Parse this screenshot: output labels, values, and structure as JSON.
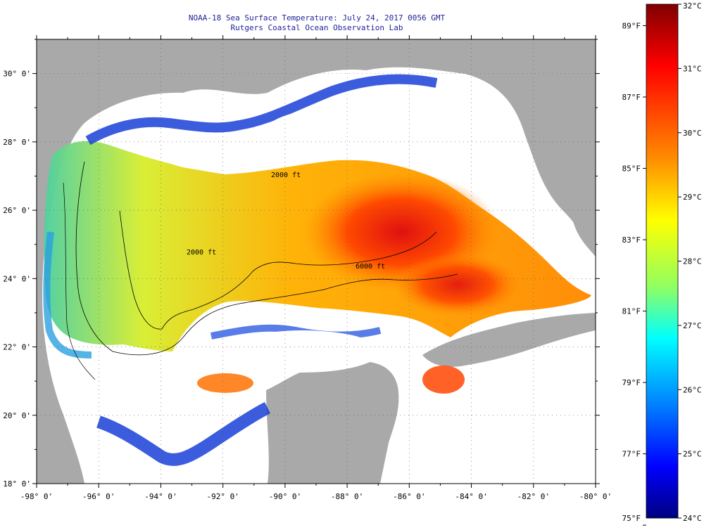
{
  "title": {
    "line1": "NOAA-18 Sea Surface Temperature:  July 24, 2017 0056 GMT",
    "line2": "Rutgers Coastal Ocean Observation Lab"
  },
  "map": {
    "lon_range": [
      -98,
      -80
    ],
    "lat_range": [
      18,
      31
    ],
    "lon_ticks": [
      "-98° 0'",
      "-96° 0'",
      "-94° 0'",
      "-92° 0'",
      "-90° 0'",
      "-88° 0'",
      "-86° 0'",
      "-84° 0'",
      "-82° 0'",
      "-80° 0'"
    ],
    "lat_ticks": [
      "18° 0'",
      "20° 0'",
      "22° 0'",
      "24° 0'",
      "26° 0'",
      "28° 0'",
      "30° 0'"
    ],
    "depth_labels": [
      "2000 ft",
      "6000 ft",
      "2000 ft"
    ],
    "colors": {
      "land": "#a9a9a9",
      "cloud": "#ffffff",
      "contour": "#000000"
    }
  },
  "colorbar": {
    "celsius_labels": [
      "32°C",
      "31°C",
      "30°C",
      "29°C",
      "28°C",
      "27°C",
      "26°C",
      "25°C",
      "24°C"
    ],
    "fahrenheit_labels": [
      "89°F",
      "87°F",
      "85°F",
      "83°F",
      "81°F",
      "79°F",
      "77°F",
      "75°F"
    ],
    "range_c": [
      24,
      32
    ],
    "colors": [
      "#00007f",
      "#0000ff",
      "#007fff",
      "#00ffff",
      "#7fff7f",
      "#ffff00",
      "#ff7f00",
      "#ff0000",
      "#7f0000"
    ]
  }
}
